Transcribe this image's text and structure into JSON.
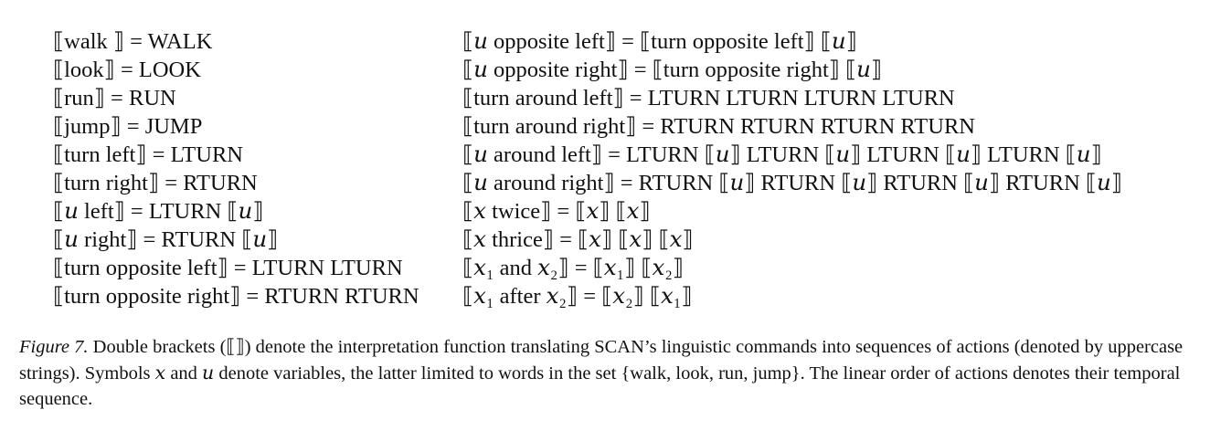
{
  "rules": {
    "left": [
      "⟦walk ⟧ = WALK",
      "⟦look⟧ = LOOK",
      "⟦run⟧ = RUN",
      "⟦jump⟧ = JUMP",
      "⟦turn left⟧ = LTURN",
      "⟦turn right⟧ = RTURN",
      "⟦𝑢 left⟧ = LTURN ⟦𝑢⟧",
      "⟦𝑢 right⟧ = RTURN ⟦𝑢⟧",
      "⟦turn opposite left⟧ = LTURN LTURN",
      "⟦turn opposite right⟧ = RTURN RTURN"
    ],
    "right": [
      "⟦𝑢 opposite left⟧ = ⟦turn opposite left⟧ ⟦𝑢⟧",
      "⟦𝑢 opposite right⟧ = ⟦turn opposite right⟧ ⟦𝑢⟧",
      "⟦turn around left⟧ = LTURN LTURN LTURN LTURN",
      "⟦turn around right⟧ = RTURN RTURN RTURN RTURN",
      "⟦𝑢 around left⟧ = LTURN ⟦𝑢⟧ LTURN ⟦𝑢⟧ LTURN ⟦𝑢⟧ LTURN ⟦𝑢⟧",
      "⟦𝑢 around right⟧ = RTURN ⟦𝑢⟧ RTURN ⟦𝑢⟧ RTURN ⟦𝑢⟧ RTURN ⟦𝑢⟧",
      "⟦𝑥 twice⟧ = ⟦𝑥⟧ ⟦𝑥⟧",
      "⟦𝑥 thrice⟧ = ⟦𝑥⟧ ⟦𝑥⟧ ⟦𝑥⟧",
      "⟦𝑥₁ and 𝑥₂⟧ = ⟦𝑥₁⟧ ⟦𝑥₂⟧",
      "⟦𝑥₁ after 𝑥₂⟧ = ⟦𝑥₂⟧ ⟦𝑥₁⟧"
    ]
  },
  "caption": {
    "label": "Figure 7.",
    "text": "Double brackets (⟦⟧) denote the interpretation function translating SCAN’s linguistic commands into sequences of actions (denoted by uppercase strings). Symbols 𝑥 and 𝑢 denote variables, the latter limited to words in the set {walk, look, run, jump}. The linear order of actions denotes their temporal sequence."
  }
}
